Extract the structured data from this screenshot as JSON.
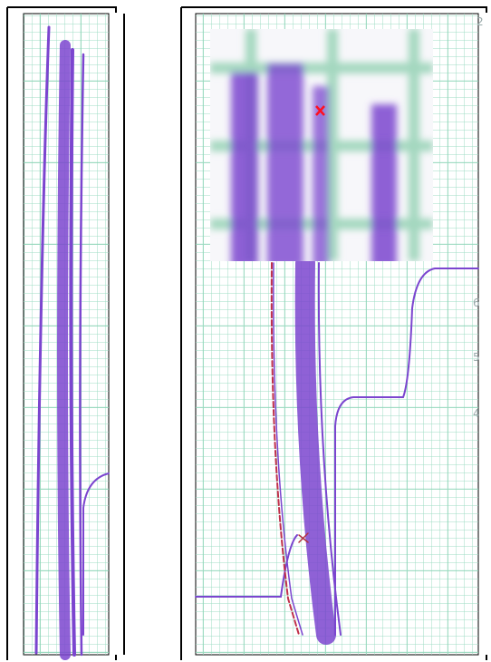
{
  "scale_labels": [
    "2",
    "6",
    "5",
    "4"
  ]
}
